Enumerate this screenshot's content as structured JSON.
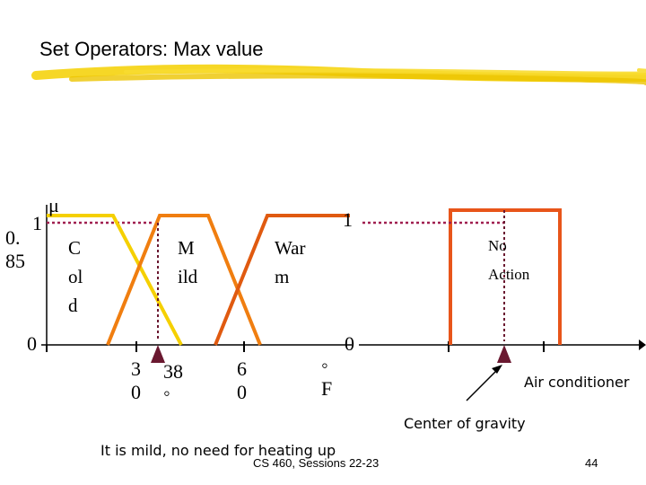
{
  "slide": {
    "title": "Set Operators: Max value",
    "footer_course": "CS 460,  Sessions 22-23",
    "page_number": "44",
    "conclusion": "It is mild, no need for heating up"
  },
  "chart_data": {
    "type": "line",
    "y_axis_symbol": "μ",
    "y_axis_labels": [
      "1",
      "0. 85",
      "0"
    ],
    "right_axis_labels": [
      "1",
      "0"
    ],
    "membership_functions": [
      {
        "name": "C ol d",
        "color": "#f5d000"
      },
      {
        "name": "M ild",
        "color": "#f07e10"
      },
      {
        "name": "War m",
        "color": "#e05a10"
      },
      {
        "name": "No Action",
        "color": "#e8551a"
      }
    ],
    "x_ticks": [
      "3 0",
      "38 ◦",
      "6 0",
      "◦ F"
    ],
    "annotations": {
      "center_of_gravity": "Center of gravity",
      "air_conditioner": "Air conditioner"
    },
    "colors": {
      "max_line": "#a02050",
      "arrow": "#6a1830",
      "axis": "#000000"
    }
  }
}
